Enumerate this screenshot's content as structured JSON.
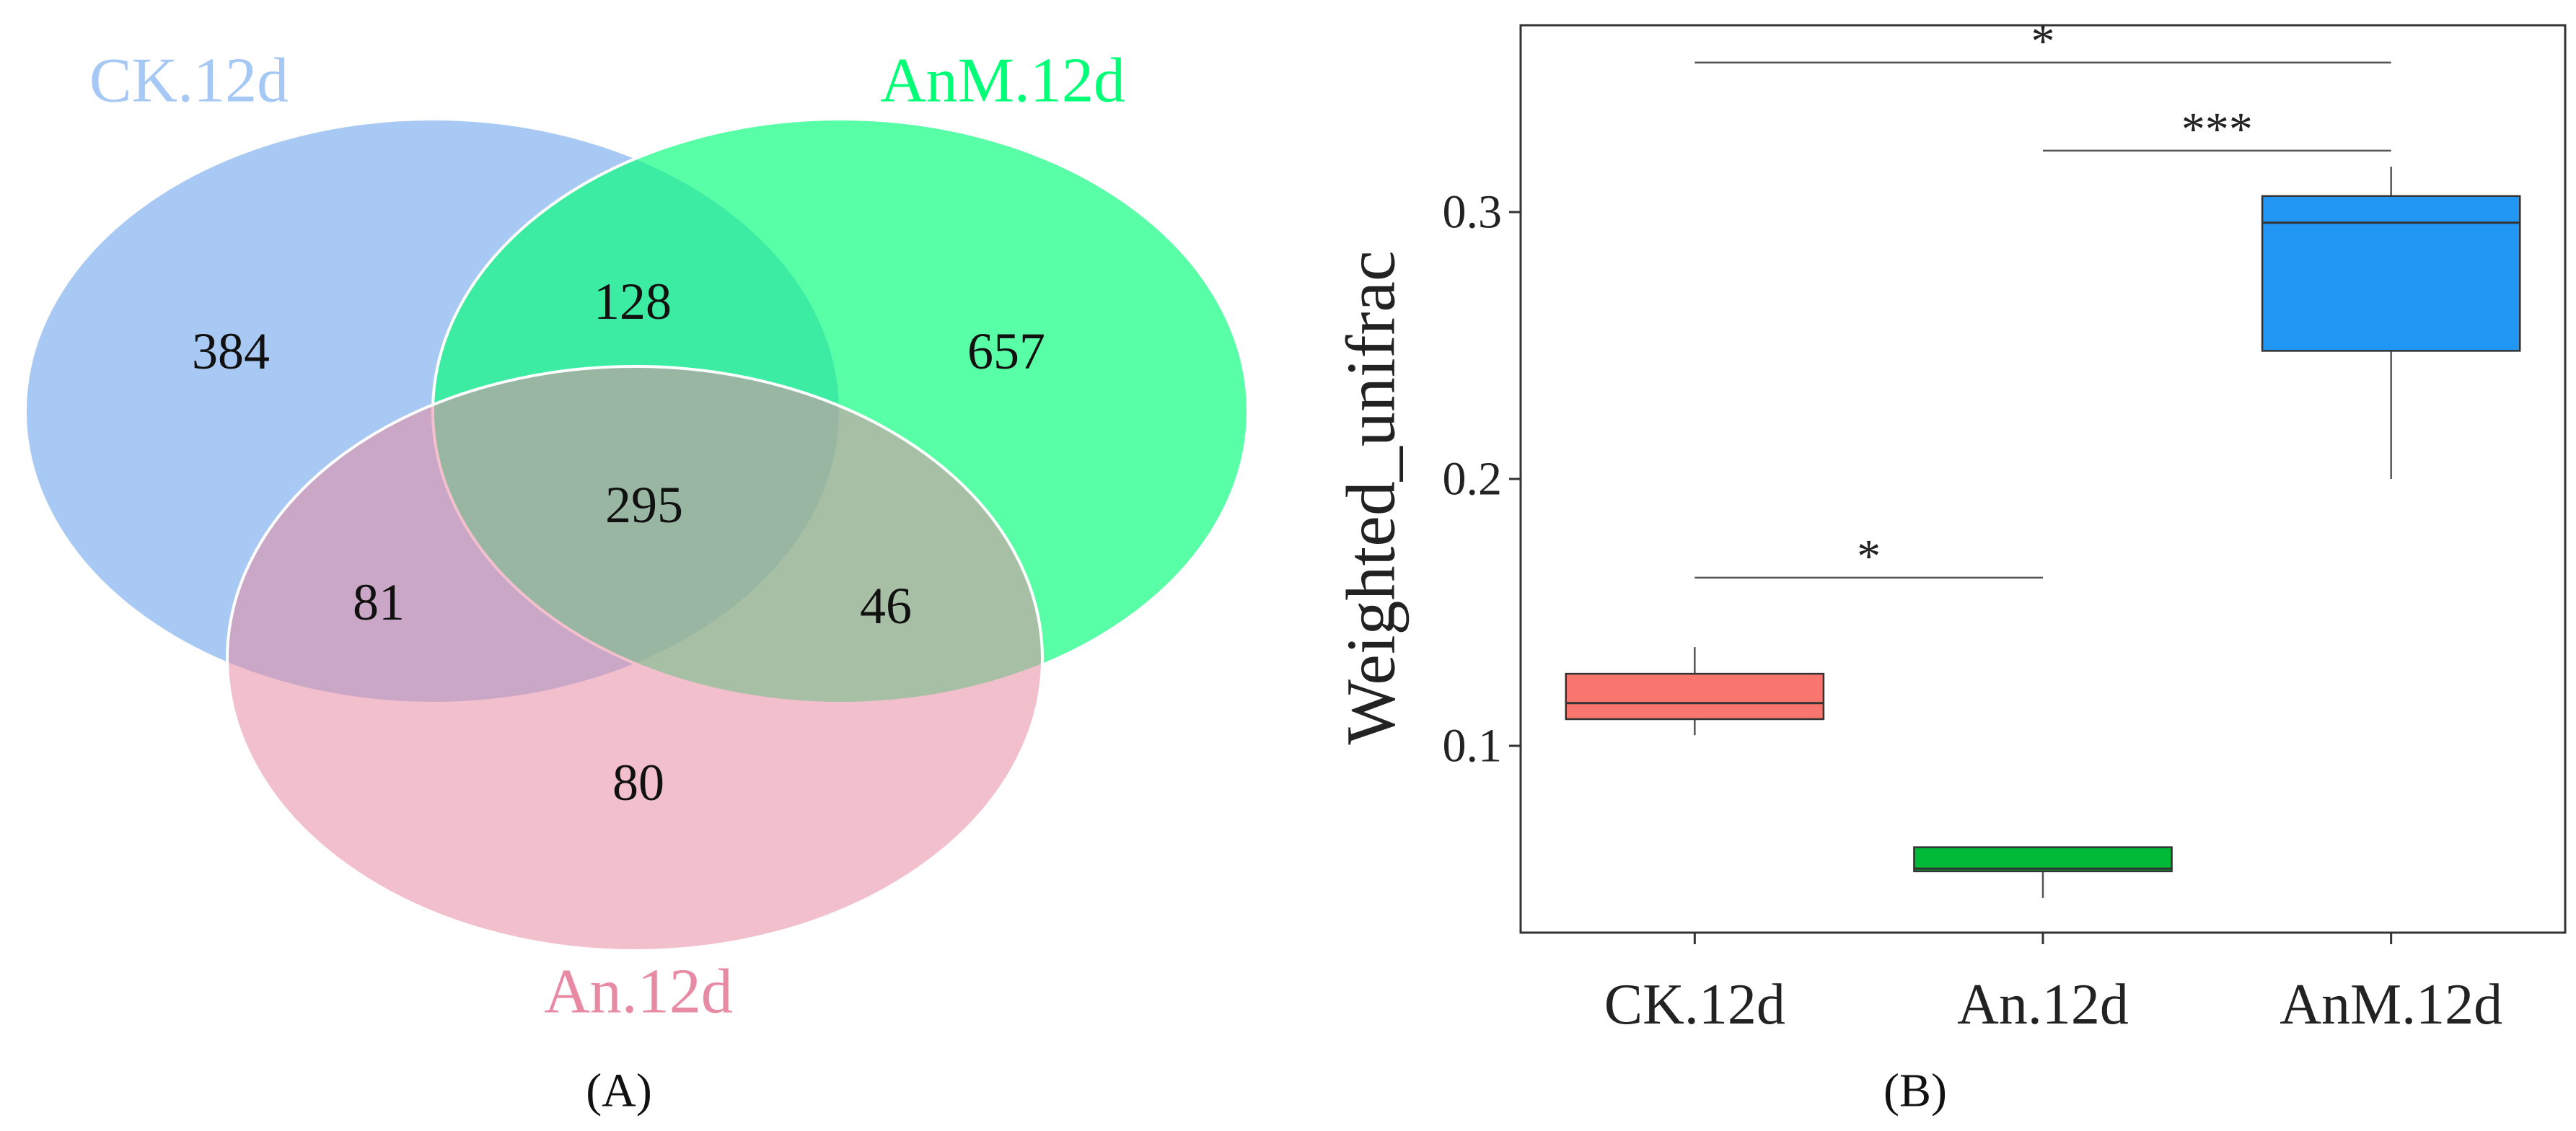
{
  "chart_data": [
    {
      "type": "venn",
      "panel_label": "(A)",
      "sets": [
        {
          "name": "CK.12d",
          "color": "#a6c8f4"
        },
        {
          "name": "AnM.12d",
          "color": "#00ff77"
        },
        {
          "name": "An.12d",
          "color": "#e88aa3"
        }
      ],
      "regions": {
        "CK.12d_only": "384",
        "AnM.12d_only": "657",
        "An.12d_only": "80",
        "CK.12d_AnM.12d": "128",
        "CK.12d_An.12d": "81",
        "AnM.12d_An.12d": "46",
        "all": "295"
      }
    },
    {
      "type": "box",
      "panel_label": "(B)",
      "ylabel": "Weighted_unifrac",
      "xlabel": "",
      "ylim": [
        0.03,
        0.37
      ],
      "yticks": [
        0.1,
        0.2,
        0.3
      ],
      "ytick_labels": [
        "0.1",
        "0.2",
        "0.3"
      ],
      "categories": [
        "CK.12d",
        "An.12d",
        "AnM.12d"
      ],
      "boxes": [
        {
          "name": "CK.12d",
          "color": "#f8766d",
          "min": 0.104,
          "q1": 0.11,
          "median": 0.116,
          "q3": 0.127,
          "max": 0.137
        },
        {
          "name": "An.12d",
          "color": "#00ba38",
          "min": 0.043,
          "q1": 0.053,
          "median": 0.054,
          "q3": 0.062,
          "max": 0.062
        },
        {
          "name": "AnM.12d",
          "color": "#2196f3",
          "min": 0.2,
          "q1": 0.248,
          "median": 0.296,
          "q3": 0.306,
          "max": 0.317
        }
      ],
      "significance": [
        {
          "from": "CK.12d",
          "to": "An.12d",
          "y": 0.163,
          "label": "*"
        },
        {
          "from": "An.12d",
          "to": "AnM.12d",
          "y": 0.323,
          "label": "***"
        },
        {
          "from": "CK.12d",
          "to": "AnM.12d",
          "y": 0.356,
          "label": "*"
        }
      ]
    }
  ]
}
